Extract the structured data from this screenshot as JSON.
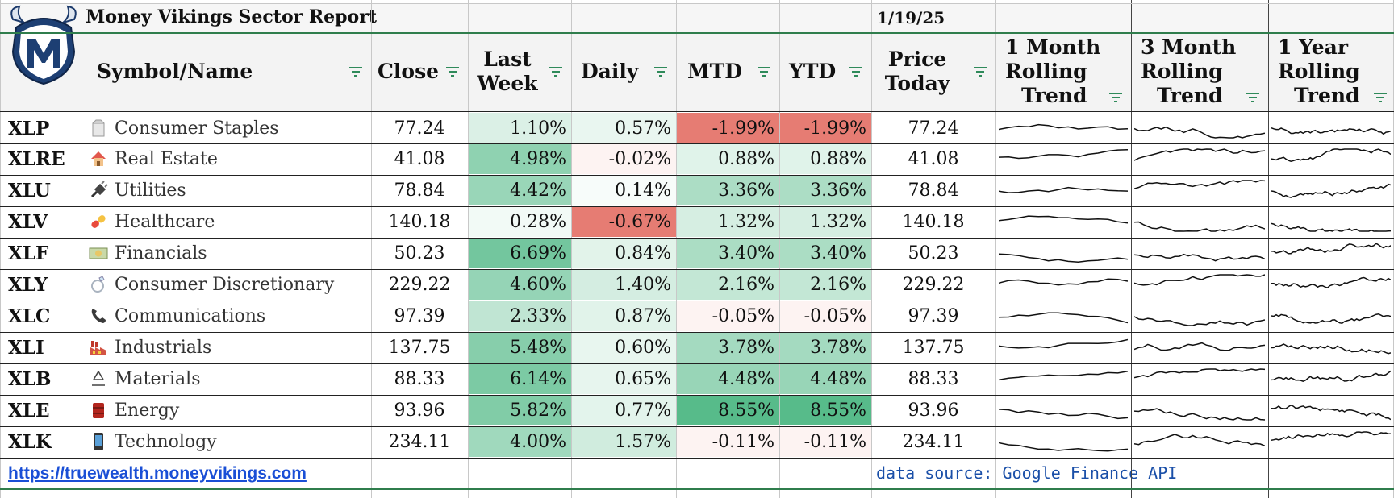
{
  "report": {
    "title": "Money Vikings Sector Report",
    "date": "1/19/25"
  },
  "headers": {
    "symbol_name": "Symbol/Name",
    "close": "Close",
    "last_week_1": "Last",
    "last_week_2": "Week",
    "daily": "Daily",
    "mtd": "MTD",
    "ytd": "YTD",
    "price_today_1": "Price",
    "price_today_2": "Today",
    "m1_1": "1 Month",
    "m1_2": "Rolling",
    "m1_3": "Trend",
    "m3_1": "3 Month",
    "m3_2": "Rolling",
    "m3_3": "Trend",
    "y1_1": "1 Year",
    "y1_2": "Rolling",
    "y1_3": "Trend"
  },
  "colors": {
    "accent_green": "#57bb8a",
    "accent_red": "#e67c73",
    "link": "#1a4fd6",
    "source_text": "#1a4fa8",
    "border_green": "#2f7d4c"
  },
  "rows": [
    {
      "symbol": "XLP",
      "icon": "milk-carton-icon",
      "name": "Consumer Staples",
      "close": "77.24",
      "last_week": "1.10%",
      "daily": "0.57%",
      "mtd": "-1.99%",
      "ytd": "-1.99%",
      "price_today": "77.24"
    },
    {
      "symbol": "XLRE",
      "icon": "house-icon",
      "name": "Real Estate",
      "close": "41.08",
      "last_week": "4.98%",
      "daily": "-0.02%",
      "mtd": "0.88%",
      "ytd": "0.88%",
      "price_today": "41.08"
    },
    {
      "symbol": "XLU",
      "icon": "plug-icon",
      "name": "Utilities",
      "close": "78.84",
      "last_week": "4.42%",
      "daily": "0.14%",
      "mtd": "3.36%",
      "ytd": "3.36%",
      "price_today": "78.84"
    },
    {
      "symbol": "XLV",
      "icon": "pill-icon",
      "name": "Healthcare",
      "close": "140.18",
      "last_week": "0.28%",
      "daily": "-0.67%",
      "mtd": "1.32%",
      "ytd": "1.32%",
      "price_today": "140.18"
    },
    {
      "symbol": "XLF",
      "icon": "money-icon",
      "name": "Financials",
      "close": "50.23",
      "last_week": "6.69%",
      "daily": "0.84%",
      "mtd": "3.40%",
      "ytd": "3.40%",
      "price_today": "50.23"
    },
    {
      "symbol": "XLY",
      "icon": "ring-icon",
      "name": "Consumer Discretionary",
      "close": "229.22",
      "last_week": "4.60%",
      "daily": "1.40%",
      "mtd": "2.16%",
      "ytd": "2.16%",
      "price_today": "229.22"
    },
    {
      "symbol": "XLC",
      "icon": "phone-icon",
      "name": "Communications",
      "close": "97.39",
      "last_week": "2.33%",
      "daily": "0.87%",
      "mtd": "-0.05%",
      "ytd": "-0.05%",
      "price_today": "97.39"
    },
    {
      "symbol": "XLI",
      "icon": "factory-icon",
      "name": "Industrials",
      "close": "137.75",
      "last_week": "5.48%",
      "daily": "0.60%",
      "mtd": "3.78%",
      "ytd": "3.78%",
      "price_today": "137.75"
    },
    {
      "symbol": "XLB",
      "icon": "recycle-icon",
      "name": "Materials",
      "close": "88.33",
      "last_week": "6.14%",
      "daily": "0.65%",
      "mtd": "4.48%",
      "ytd": "4.48%",
      "price_today": "88.33"
    },
    {
      "symbol": "XLE",
      "icon": "oil-drum-icon",
      "name": "Energy",
      "close": "93.96",
      "last_week": "5.82%",
      "daily": "0.77%",
      "mtd": "8.55%",
      "ytd": "8.55%",
      "price_today": "93.96"
    },
    {
      "symbol": "XLK",
      "icon": "mobile-phone-icon",
      "name": "Technology",
      "close": "234.11",
      "last_week": "4.00%",
      "daily": "1.57%",
      "mtd": "-0.11%",
      "ytd": "-0.11%",
      "price_today": "234.11"
    }
  ],
  "footer": {
    "link": "https://truewealth.moneyvikings.com",
    "source": "data source: Google Finance API"
  }
}
